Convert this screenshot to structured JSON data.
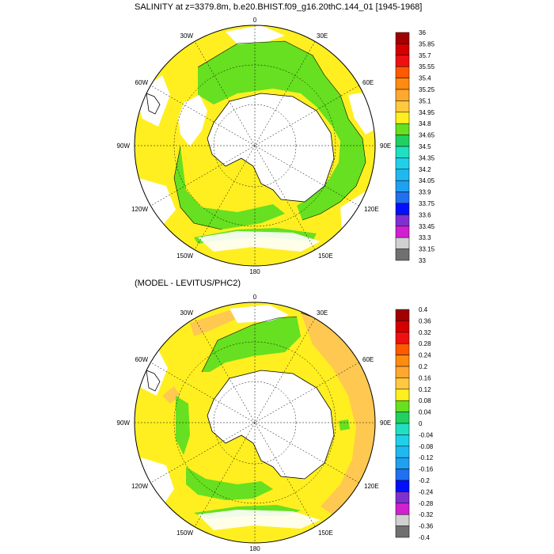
{
  "panels": [
    {
      "id": "top",
      "title": "SALINITY at z=3379.8m, b.e20.BHIST.f09_g16.20thC.144_01 [1945-1968]",
      "longitude_labels": [
        "0",
        "30E",
        "60E",
        "90E",
        "120E",
        "150E",
        "180",
        "150W",
        "120W",
        "90W",
        "60W",
        "30W"
      ],
      "colorbar": {
        "labels": [
          "36",
          "35.85",
          "35.7",
          "35.55",
          "35.4",
          "35.25",
          "35.1",
          "34.95",
          "34.8",
          "34.65",
          "34.5",
          "34.35",
          "34.2",
          "34.05",
          "33.9",
          "33.75",
          "33.6",
          "33.45",
          "33.3",
          "33.15",
          "33"
        ],
        "colors": [
          "#a00000",
          "#d40000",
          "#f01010",
          "#ff5a00",
          "#ff8c10",
          "#ffa830",
          "#ffc840",
          "#ffef20",
          "#66e020",
          "#22d060",
          "#20e0c0",
          "#20d0e8",
          "#20b8f0",
          "#20a0f0",
          "#2070f0",
          "#0010ff",
          "#8030d0",
          "#d020d0",
          "#d0d0d0",
          "#707070"
        ]
      }
    },
    {
      "id": "bottom",
      "title": "(MODEL - LEVITUS/PHC2)",
      "longitude_labels": [
        "0",
        "30E",
        "60E",
        "90E",
        "120E",
        "150E",
        "180",
        "150W",
        "120W",
        "90W",
        "60W",
        "30W"
      ],
      "colorbar": {
        "labels": [
          "0.4",
          "0.36",
          "0.32",
          "0.28",
          "0.24",
          "0.2",
          "0.16",
          "0.12",
          "0.08",
          "0.04",
          "0",
          "-0.04",
          "-0.08",
          "-0.12",
          "-0.16",
          "-0.2",
          "-0.24",
          "-0.28",
          "-0.32",
          "-0.36",
          "-0.4"
        ],
        "colors": [
          "#a00000",
          "#d40000",
          "#f01010",
          "#ff5a00",
          "#ff8c10",
          "#ffa830",
          "#ffc840",
          "#ffef20",
          "#66e020",
          "#22d060",
          "#20e0c0",
          "#20d0e8",
          "#20b8f0",
          "#20a0f0",
          "#2070f0",
          "#0010ff",
          "#8030d0",
          "#d020d0",
          "#d0d0d0",
          "#707070"
        ]
      }
    }
  ],
  "colors": {
    "yellow": "#ffef20",
    "green": "#66e020",
    "orange": "#ffc850",
    "land": "#ffffff",
    "coast": "#000000"
  }
}
